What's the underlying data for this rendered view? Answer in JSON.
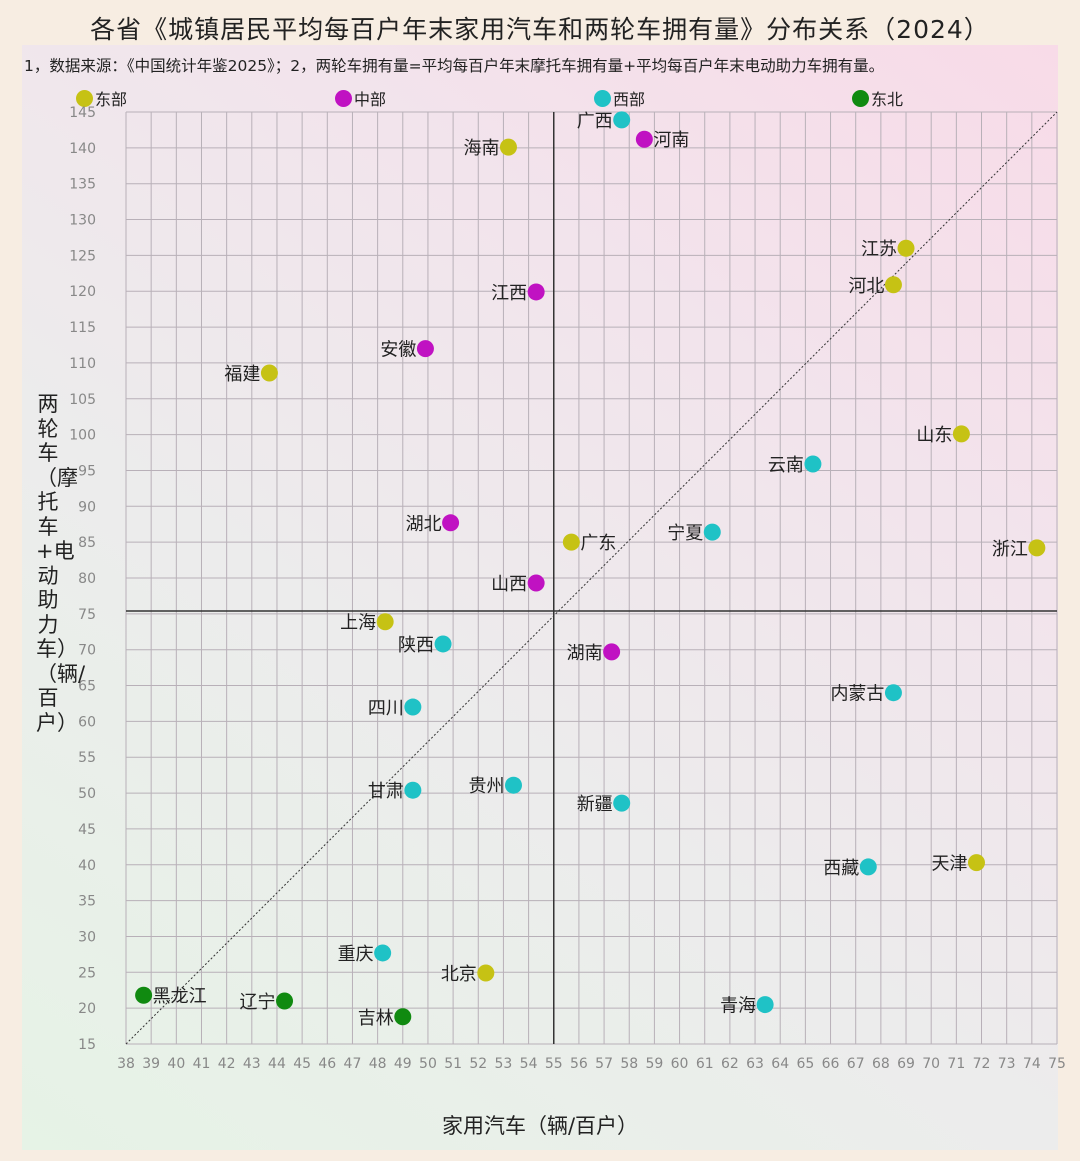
{
  "title": "各省《城镇居民平均每百户年末家用汽车和两轮车拥有量》分布关系（2024）",
  "note": "1，数据来源：《中国统计年鉴2025》；2，两轮车拥有量=平均每百户年末摩托车拥有量+平均每百户年末电动助力车拥有量。",
  "legend": [
    {
      "name": "东部",
      "color": "#c6c214"
    },
    {
      "name": "中部",
      "color": "#c012c2"
    },
    {
      "name": "西部",
      "color": "#1fc2c6"
    },
    {
      "name": "东北",
      "color": "#108a10"
    }
  ],
  "chart_data": {
    "type": "scatter",
    "title": "各省《城镇居民平均每百户年末家用汽车和两轮车拥有量》分布关系（2024）",
    "xlabel": "家用汽车（辆/百户）",
    "ylabel": "两轮车（摩托车+电动助力车）（辆/百户）",
    "xlim": [
      38,
      75
    ],
    "ylim": [
      15,
      145
    ],
    "xticks": [
      38,
      39,
      40,
      41,
      42,
      43,
      44,
      45,
      46,
      47,
      48,
      49,
      50,
      51,
      52,
      53,
      54,
      55,
      56,
      57,
      58,
      59,
      60,
      61,
      62,
      63,
      64,
      65,
      66,
      67,
      68,
      69,
      70,
      71,
      72,
      73,
      74,
      75
    ],
    "yticks": [
      15,
      20,
      25,
      30,
      35,
      40,
      45,
      50,
      55,
      60,
      65,
      70,
      75,
      80,
      85,
      90,
      95,
      100,
      105,
      110,
      115,
      120,
      125,
      130,
      135,
      140,
      145
    ],
    "grid": true,
    "legend_position": "top",
    "reference_lines": {
      "vertical_x": 55,
      "horizontal_y": 75.4,
      "diagonal": "dotted, from (38,15) to (75,145)"
    },
    "points": [
      {
        "name": "广西",
        "region": "西部",
        "x": 57.7,
        "y": 143.9
      },
      {
        "name": "河南",
        "region": "中部",
        "x": 58.6,
        "y": 141.2
      },
      {
        "name": "海南",
        "region": "东部",
        "x": 53.2,
        "y": 140.1
      },
      {
        "name": "江苏",
        "region": "东部",
        "x": 69.0,
        "y": 126.0
      },
      {
        "name": "河北",
        "region": "东部",
        "x": 68.5,
        "y": 120.9
      },
      {
        "name": "江西",
        "region": "中部",
        "x": 54.3,
        "y": 119.9
      },
      {
        "name": "安徽",
        "region": "中部",
        "x": 49.9,
        "y": 112.0
      },
      {
        "name": "福建",
        "region": "东部",
        "x": 43.7,
        "y": 108.6
      },
      {
        "name": "山东",
        "region": "东部",
        "x": 71.2,
        "y": 100.1
      },
      {
        "name": "云南",
        "region": "西部",
        "x": 65.3,
        "y": 95.9
      },
      {
        "name": "宁夏",
        "region": "西部",
        "x": 61.3,
        "y": 86.4
      },
      {
        "name": "湖北",
        "region": "中部",
        "x": 50.9,
        "y": 87.7
      },
      {
        "name": "广东",
        "region": "东部",
        "x": 55.7,
        "y": 85.0
      },
      {
        "name": "浙江",
        "region": "东部",
        "x": 74.2,
        "y": 84.2
      },
      {
        "name": "山西",
        "region": "中部",
        "x": 54.3,
        "y": 79.3
      },
      {
        "name": "上海",
        "region": "东部",
        "x": 48.3,
        "y": 73.9
      },
      {
        "name": "陕西",
        "region": "西部",
        "x": 50.6,
        "y": 70.8
      },
      {
        "name": "湖南",
        "region": "中部",
        "x": 57.3,
        "y": 69.7
      },
      {
        "name": "内蒙古",
        "region": "西部",
        "x": 68.5,
        "y": 64.0
      },
      {
        "name": "四川",
        "region": "西部",
        "x": 49.4,
        "y": 62.0
      },
      {
        "name": "甘肃",
        "region": "西部",
        "x": 49.4,
        "y": 50.4
      },
      {
        "name": "贵州",
        "region": "西部",
        "x": 53.4,
        "y": 51.1
      },
      {
        "name": "新疆",
        "region": "西部",
        "x": 57.7,
        "y": 48.6
      },
      {
        "name": "西藏",
        "region": "西部",
        "x": 67.5,
        "y": 39.7
      },
      {
        "name": "天津",
        "region": "东部",
        "x": 71.8,
        "y": 40.3
      },
      {
        "name": "重庆",
        "region": "西部",
        "x": 48.2,
        "y": 27.7
      },
      {
        "name": "北京",
        "region": "东部",
        "x": 52.3,
        "y": 24.9
      },
      {
        "name": "青海",
        "region": "西部",
        "x": 63.4,
        "y": 20.5
      },
      {
        "name": "黑龙江",
        "region": "东北",
        "x": 38.7,
        "y": 21.8
      },
      {
        "name": "辽宁",
        "region": "东北",
        "x": 44.3,
        "y": 21.0
      },
      {
        "name": "吉林",
        "region": "东北",
        "x": 49.0,
        "y": 18.8
      }
    ]
  }
}
